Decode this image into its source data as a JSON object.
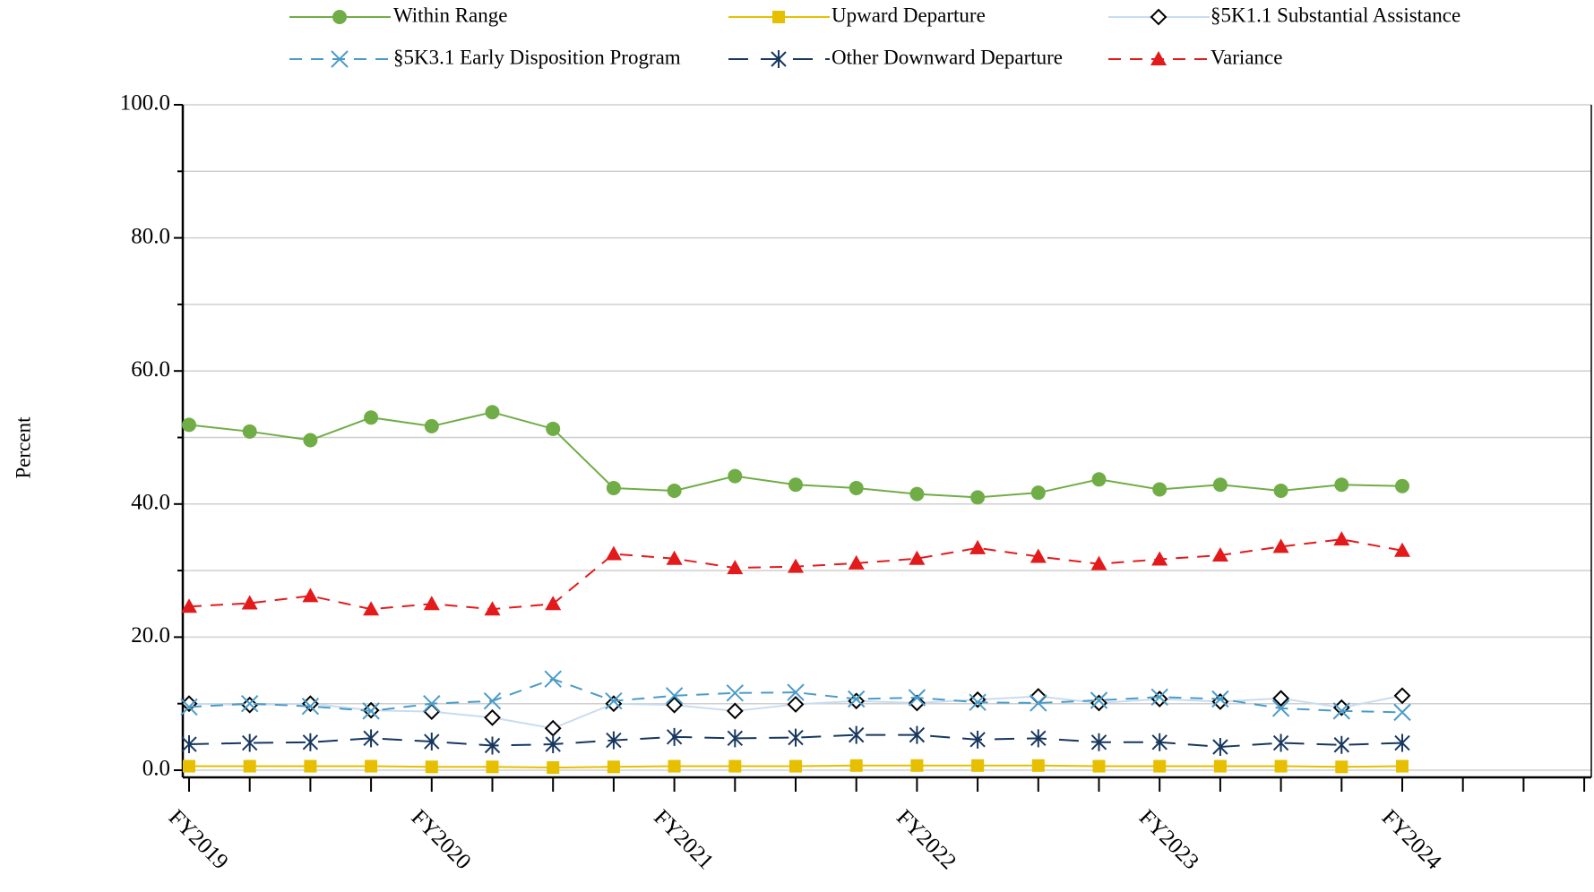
{
  "chart_data": {
    "type": "line",
    "y_label": "Percent",
    "categories": [
      "FY2019",
      null,
      null,
      null,
      "FY2020",
      null,
      null,
      null,
      "FY2021",
      null,
      null,
      null,
      "FY2022",
      null,
      null,
      null,
      "FY2023",
      null,
      null,
      null,
      "FY2024",
      null,
      null,
      null
    ],
    "ylim": [
      0,
      100
    ],
    "yticks": [
      {
        "value": 0,
        "label": "0.0"
      },
      {
        "value": 20,
        "label": "20.0"
      },
      {
        "value": 40,
        "label": "40.0"
      },
      {
        "value": 60,
        "label": "60.0"
      },
      {
        "value": 80,
        "label": "80.0"
      },
      {
        "value": 100,
        "label": "100.0"
      }
    ],
    "yminorticks": [
      10,
      30,
      50,
      70,
      90
    ],
    "grid": true,
    "legend": "top",
    "series": [
      {
        "name": "Within Range",
        "color": "#70ad47",
        "marker": "circle",
        "dash": "solid",
        "values": [
          51.9,
          50.9,
          49.6,
          53.0,
          51.7,
          53.8,
          51.3,
          42.4,
          42.0,
          44.2,
          42.9,
          42.4,
          41.5,
          41.0,
          41.7,
          43.7,
          42.2,
          42.9,
          42.0,
          42.9,
          42.7,
          null,
          null,
          null
        ]
      },
      {
        "name": "Upward Departure",
        "color": "#e6bf00",
        "marker": "square",
        "dash": "solid",
        "values": [
          0.6,
          0.6,
          0.6,
          0.6,
          0.5,
          0.5,
          0.4,
          0.5,
          0.6,
          0.6,
          0.6,
          0.7,
          0.7,
          0.7,
          0.7,
          0.6,
          0.6,
          0.6,
          0.6,
          0.5,
          0.6,
          null,
          null,
          null
        ]
      },
      {
        "name": "§5K1.1 Substantial Assistance",
        "color": "#c9dcef",
        "marker": "diamond",
        "dash": "solid",
        "values": [
          10.0,
          9.8,
          10.0,
          9.0,
          8.8,
          7.9,
          6.3,
          10.0,
          9.8,
          8.9,
          9.9,
          10.4,
          10.1,
          10.6,
          11.1,
          10.1,
          10.7,
          10.3,
          10.8,
          9.4,
          11.2,
          null,
          null,
          null
        ]
      },
      {
        "name": "§5K3.1 Early Disposition Program",
        "color": "#4a9bc8",
        "marker": "x",
        "dash": "dashed",
        "values": [
          9.5,
          10.0,
          9.6,
          8.9,
          10.0,
          10.4,
          13.7,
          10.4,
          11.2,
          11.6,
          11.7,
          10.7,
          10.9,
          10.2,
          10.1,
          10.5,
          11.0,
          10.7,
          9.3,
          8.9,
          8.7,
          null,
          null,
          null
        ]
      },
      {
        "name": "Other Downward Departure",
        "color": "#17375e",
        "marker": "asterisk",
        "dash": "longdash",
        "values": [
          3.9,
          4.1,
          4.2,
          4.8,
          4.3,
          3.7,
          3.9,
          4.5,
          5.0,
          4.8,
          4.9,
          5.3,
          5.3,
          4.6,
          4.8,
          4.2,
          4.2,
          3.5,
          4.1,
          3.8,
          4.1,
          null,
          null,
          null
        ]
      },
      {
        "name": "Variance",
        "color": "#e31a1c",
        "marker": "triangle",
        "dash": "dashed",
        "values": [
          24.6,
          25.1,
          26.2,
          24.2,
          25.0,
          24.2,
          25.0,
          32.5,
          31.8,
          30.4,
          30.6,
          31.1,
          31.8,
          33.4,
          32.1,
          31.0,
          31.7,
          32.3,
          33.6,
          34.7,
          33.0,
          null,
          null,
          null
        ]
      }
    ]
  }
}
